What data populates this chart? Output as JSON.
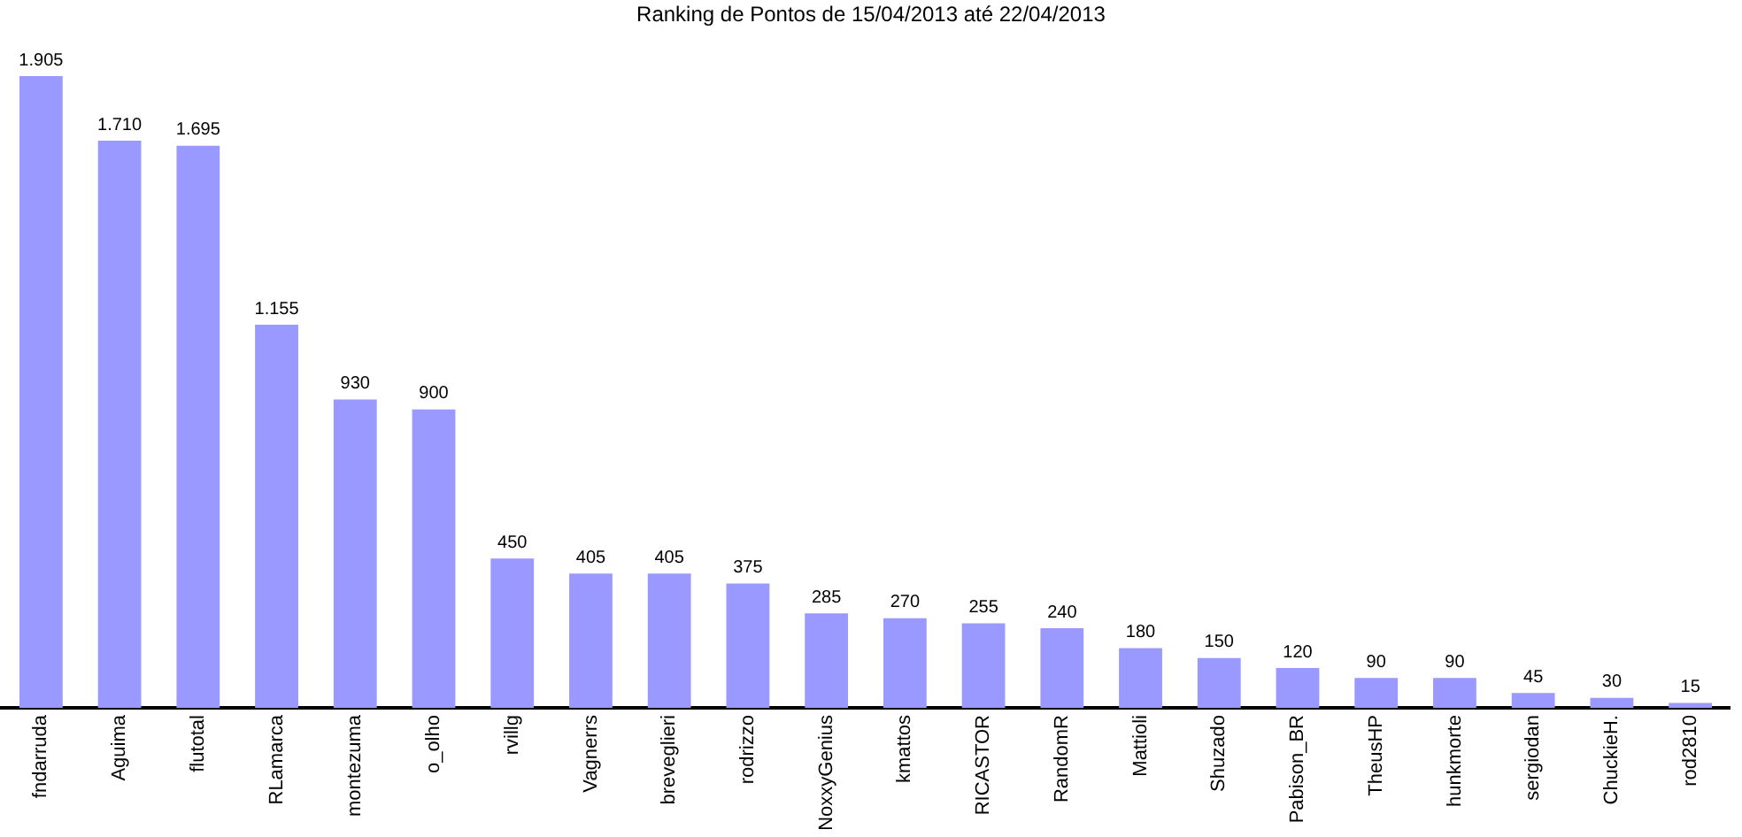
{
  "chart_data": {
    "type": "bar",
    "title": "Ranking de Pontos de 15/04/2013 até 22/04/2013",
    "categories": [
      "fndarruda",
      "Aguima",
      "flutotal",
      "RLamarca",
      "montezuma",
      "o_olho",
      "rvillg",
      "Vagnerrs",
      "breveglieri",
      "rodrizzo",
      "NoxxyGenius",
      "kmattos",
      "RICASTOR",
      "RandomR",
      "Mattioli",
      "Shuzado",
      "Pabison_BR",
      "TheusHP",
      "hunkmorte",
      "sergiodan",
      "ChuckieH.",
      "rod2810"
    ],
    "values": [
      1905,
      1710,
      1695,
      1155,
      930,
      900,
      450,
      405,
      405,
      375,
      285,
      270,
      255,
      240,
      180,
      150,
      120,
      90,
      90,
      45,
      30,
      15
    ],
    "value_labels": [
      "1.905",
      "1.710",
      "1.695",
      "1.155",
      "930",
      "900",
      "450",
      "405",
      "405",
      "375",
      "285",
      "270",
      "255",
      "240",
      "180",
      "150",
      "120",
      "90",
      "90",
      "45",
      "30",
      "15"
    ],
    "color": "#9999ff"
  }
}
